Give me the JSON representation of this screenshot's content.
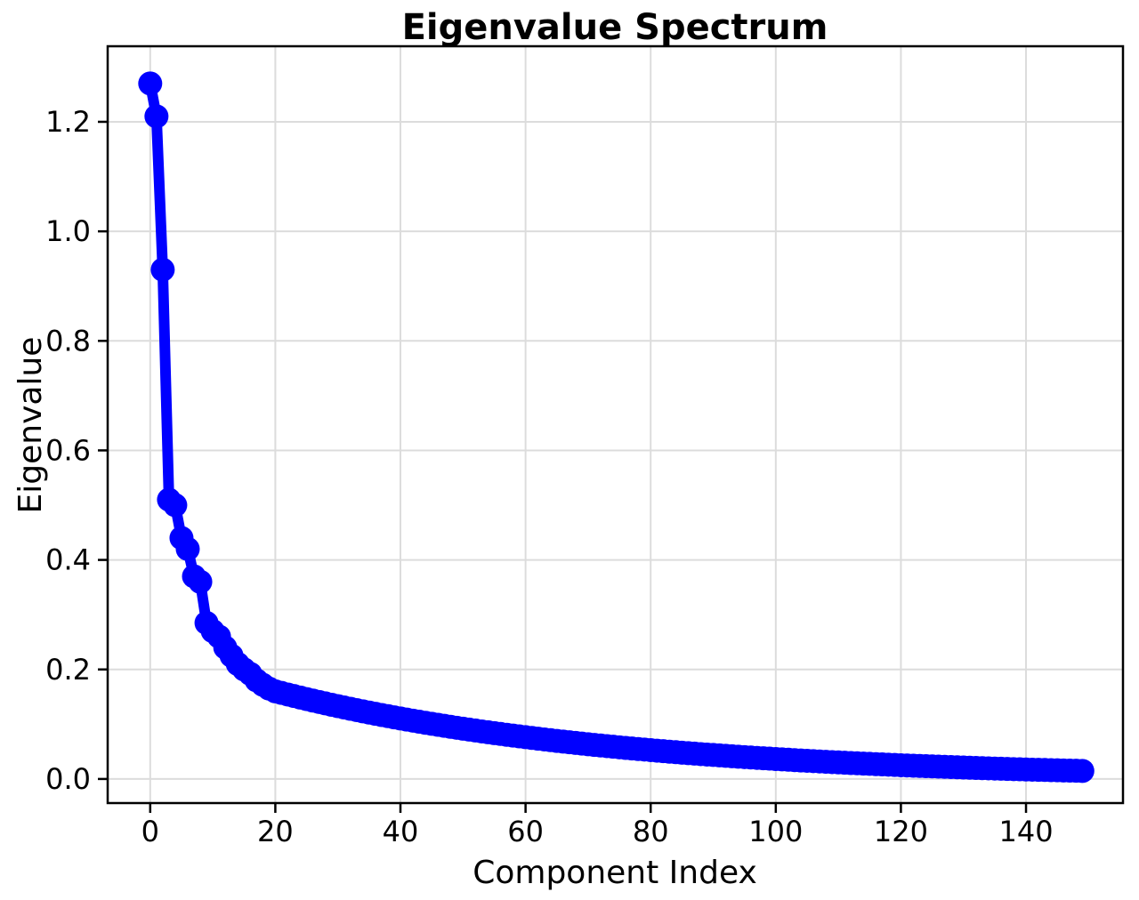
{
  "figure": {
    "background_color": "#ffffff",
    "spine_color": "#000000",
    "grid_color": "#dcdcdc"
  },
  "chart_data": {
    "type": "line",
    "title": "Eigenvalue Spectrum",
    "xlabel": "Component Index",
    "ylabel": "Eigenvalue",
    "grid": true,
    "legend_visible": false,
    "line_color": "#0000ff",
    "marker": "o",
    "xlim": [
      -6.8,
      155.5
    ],
    "ylim": [
      -0.044,
      1.338
    ],
    "x_ticks": [
      0,
      20,
      40,
      60,
      80,
      100,
      120,
      140
    ],
    "x_tick_labels": [
      "0",
      "20",
      "40",
      "60",
      "80",
      "100",
      "120",
      "140"
    ],
    "y_ticks": [
      0.0,
      0.2,
      0.4,
      0.6,
      0.8,
      1.0,
      1.2
    ],
    "y_tick_labels": [
      "0.0",
      "0.2",
      "0.4",
      "0.6",
      "0.8",
      "1.0",
      "1.2"
    ],
    "x_description": "x value of each point is its component index 0..149",
    "series": [
      {
        "name": "eigenvalues",
        "x_start_index": 0,
        "values": [
          1.27,
          1.21,
          0.93,
          0.51,
          0.5,
          0.44,
          0.42,
          0.37,
          0.36,
          0.285,
          0.27,
          0.26,
          0.24,
          0.225,
          0.21,
          0.2,
          0.192,
          0.18,
          0.172,
          0.165,
          0.16,
          0.1571,
          0.1542,
          0.1514,
          0.1486,
          0.1459,
          0.1432,
          0.1406,
          0.138,
          0.1354,
          0.133,
          0.1305,
          0.1281,
          0.1258,
          0.1235,
          0.1212,
          0.119,
          0.1168,
          0.1147,
          0.1125,
          0.1105,
          0.1085,
          0.1065,
          0.1045,
          0.1026,
          0.1007,
          0.0989,
          0.0971,
          0.0953,
          0.0935,
          0.0918,
          0.0901,
          0.0885,
          0.0868,
          0.0853,
          0.0837,
          0.0822,
          0.0806,
          0.0792,
          0.0777,
          0.0763,
          0.0749,
          0.0735,
          0.0722,
          0.0708,
          0.0695,
          0.0683,
          0.067,
          0.0658,
          0.0646,
          0.0634,
          0.0622,
          0.0611,
          0.06,
          0.0589,
          0.0578,
          0.0567,
          0.0557,
          0.0547,
          0.0537,
          0.0527,
          0.0517,
          0.0508,
          0.0498,
          0.0489,
          0.048,
          0.0471,
          0.0463,
          0.0454,
          0.0446,
          0.0438,
          0.043,
          0.0422,
          0.0414,
          0.0407,
          0.0399,
          0.0392,
          0.0385,
          0.0378,
          0.0371,
          0.0364,
          0.0357,
          0.0351,
          0.0344,
          0.0338,
          0.0332,
          0.0326,
          0.032,
          0.0314,
          0.0308,
          0.0302,
          0.0297,
          0.0291,
          0.0286,
          0.0281,
          0.0276,
          0.0271,
          0.0266,
          0.0261,
          0.0256,
          0.0251,
          0.0247,
          0.0242,
          0.0238,
          0.0233,
          0.0229,
          0.0225,
          0.0221,
          0.0217,
          0.0213,
          0.0209,
          0.0205,
          0.0201,
          0.0197,
          0.0194,
          0.019,
          0.0187,
          0.0183,
          0.018,
          0.0177,
          0.0173,
          0.017,
          0.0167,
          0.0164,
          0.0161,
          0.0158,
          0.0155,
          0.0152,
          0.015,
          0.0147
        ]
      }
    ]
  }
}
